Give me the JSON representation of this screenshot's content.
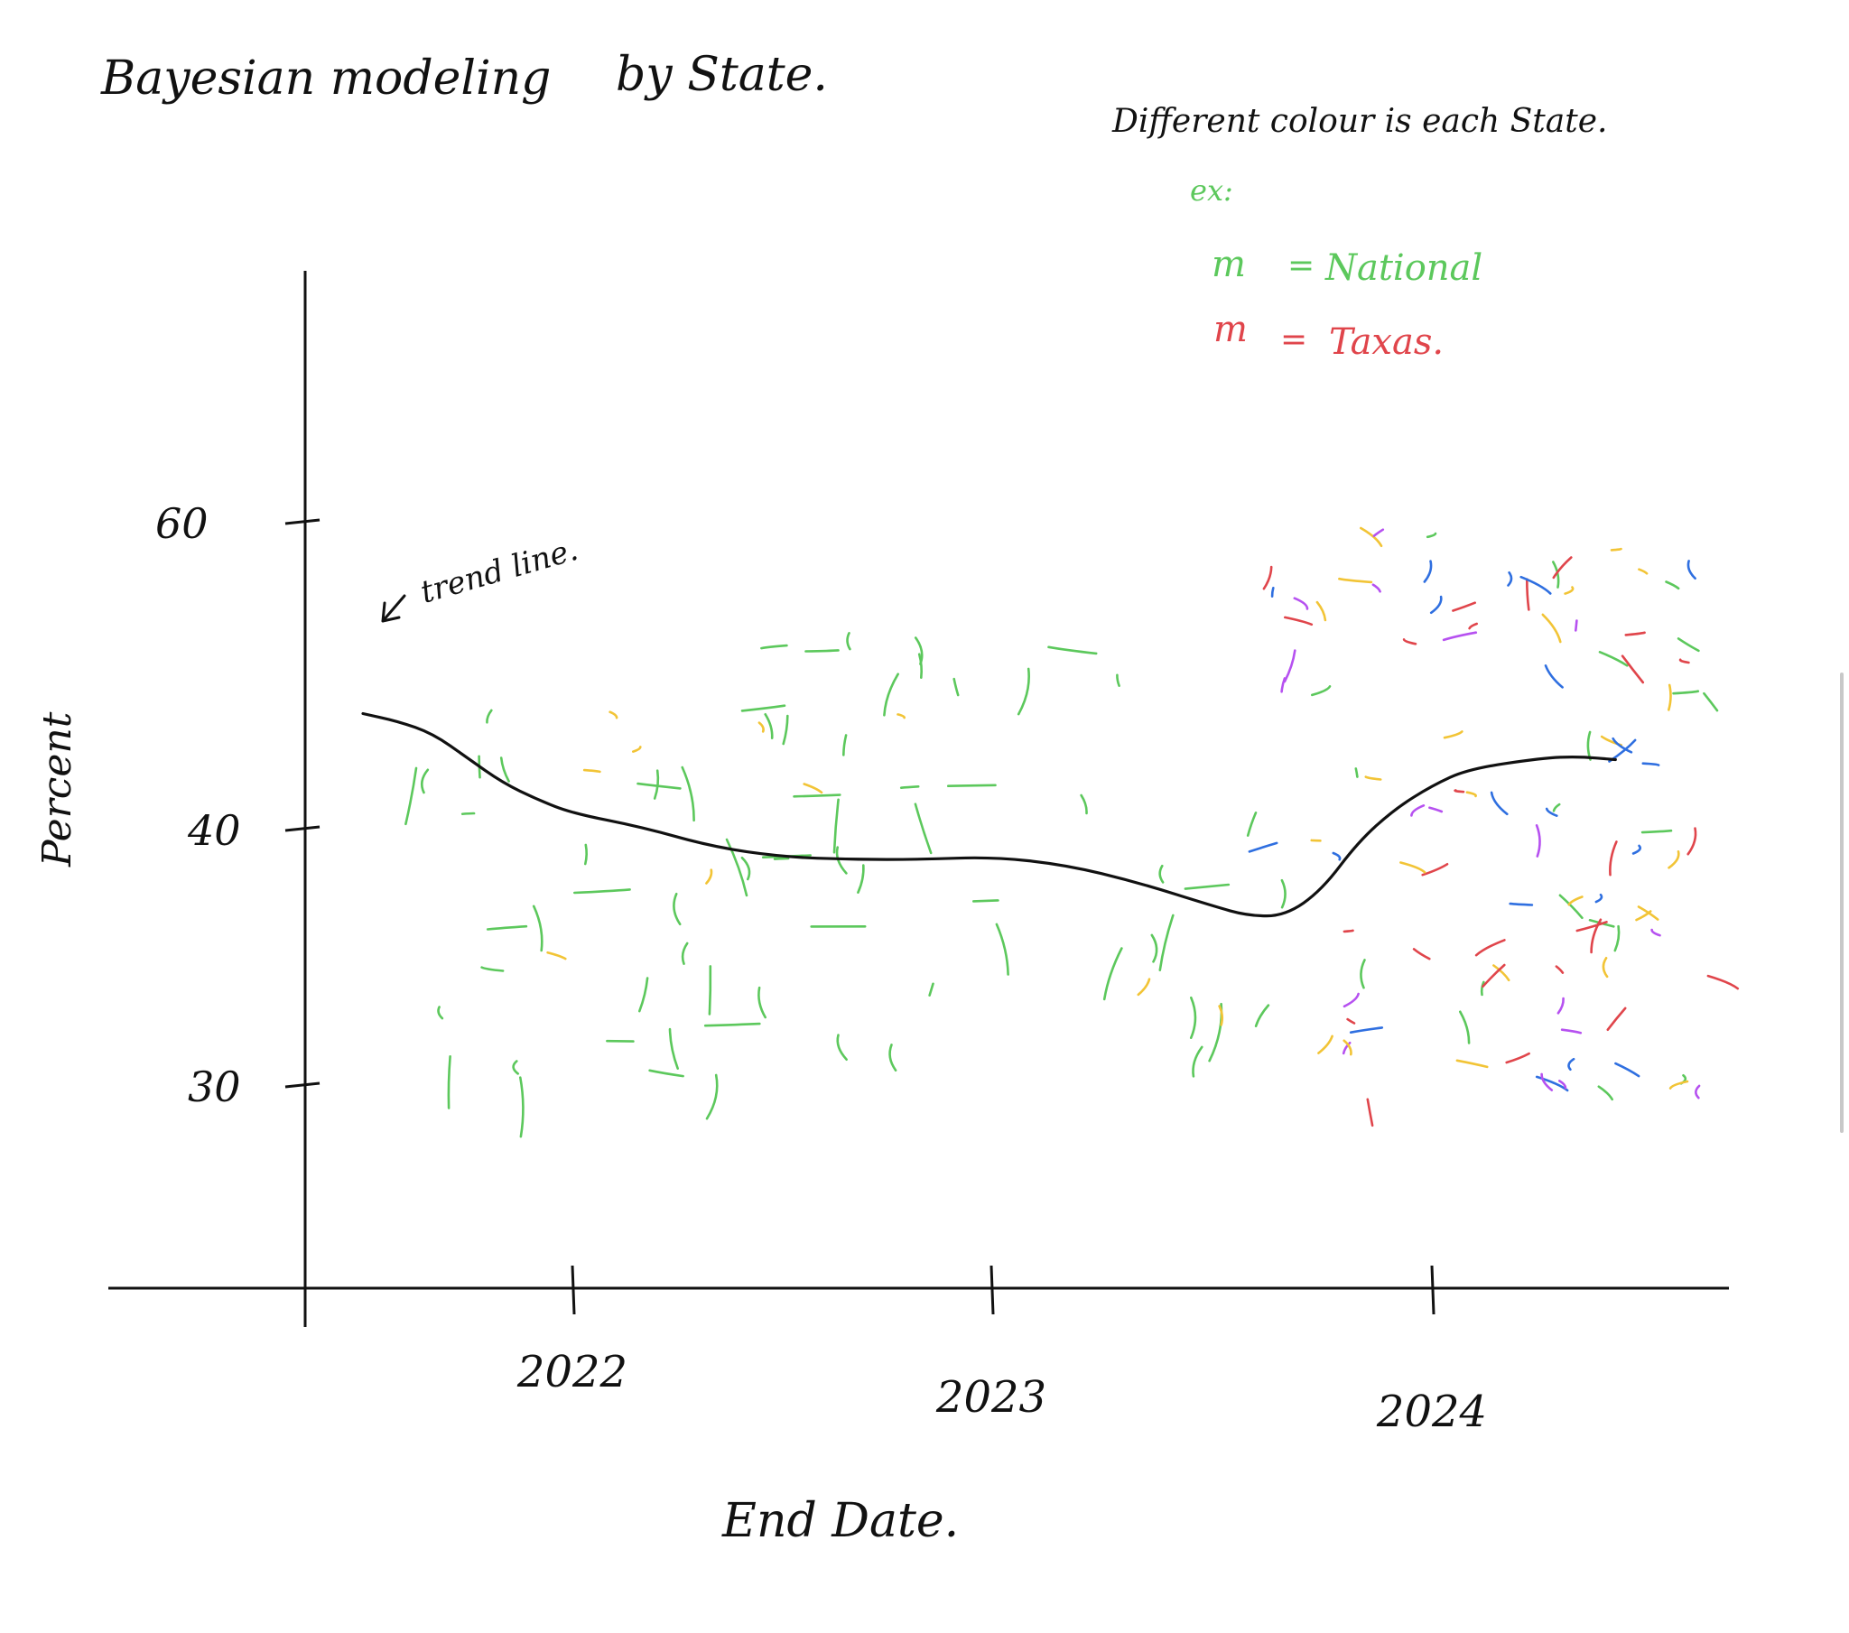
{
  "chart_data": {
    "type": "line",
    "title": "Bayesian modeling",
    "subtitle": "by State.",
    "xlabel": "End Date.",
    "ylabel": "Percent",
    "x_ticks": [
      "2022",
      "2023",
      "2024"
    ],
    "y_ticks": [
      60,
      40,
      30
    ],
    "legend_note": "Different colour is each State.",
    "legend_example_prefix": "ex:",
    "legend": [
      {
        "mark": "m",
        "eq": "=",
        "label": "National",
        "color": "#5cc85c"
      },
      {
        "mark": "m",
        "eq": "=",
        "label": "Taxas.",
        "color": "#e0454b"
      }
    ],
    "annotation": "trend line.",
    "colors": {
      "trend": "#111111",
      "national": "#5cc85c",
      "texas": "#e0454b",
      "blue": "#2f6fe0",
      "purple": "#b651f0",
      "yellow": "#f2c436"
    },
    "trend": {
      "x": [
        "2021-07",
        "2021-08",
        "2021-09",
        "2021-10",
        "2021-11",
        "2021-12",
        "2022-01",
        "2022-03",
        "2022-05",
        "2022-07",
        "2022-09",
        "2022-11",
        "2023-01",
        "2023-03",
        "2023-05",
        "2023-07",
        "2023-08",
        "2023-09",
        "2023-10",
        "2023-11",
        "2023-12",
        "2024-01",
        "2024-02",
        "2024-04",
        "2024-05",
        "2024-06"
      ],
      "y": [
        47.5,
        47.0,
        46.2,
        44.6,
        43.0,
        41.9,
        41.0,
        40.1,
        39.3,
        38.9,
        38.8,
        38.8,
        38.9,
        38.6,
        37.9,
        37.0,
        36.6,
        36.6,
        37.6,
        39.5,
        41.3,
        42.8,
        43.9,
        44.6,
        44.7,
        44.5
      ],
      "name": "trend line."
    }
  }
}
